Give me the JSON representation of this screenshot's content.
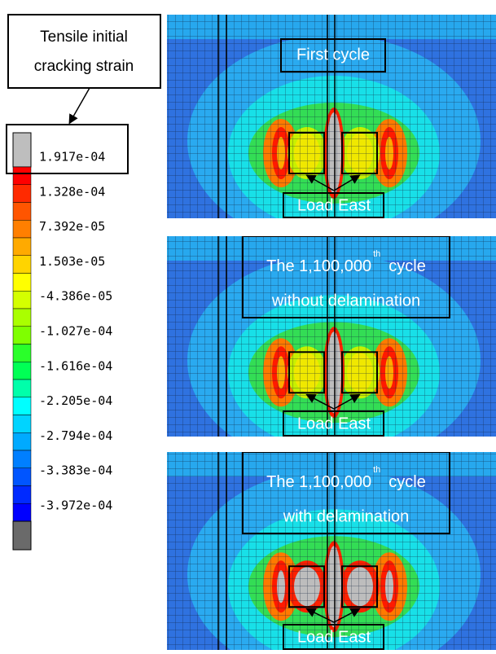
{
  "legend": {
    "title": [
      "Tensile initial",
      "cracking strain"
    ],
    "labels": [
      "1.917e-04",
      "1.328e-04",
      "7.392e-05",
      "1.503e-05",
      "-4.386e-05",
      "-1.027e-04",
      "-1.616e-04",
      "-2.205e-04",
      "-2.794e-04",
      "-3.383e-04",
      "-3.972e-04"
    ]
  },
  "panels": [
    {
      "title": {
        "before": "First cycle"
      },
      "load_label": "Load East"
    },
    {
      "title": {
        "before": "The 1,100,000",
        "sup": "th",
        "after": "cycle",
        "line2": "without delamination"
      },
      "load_label": "Load East"
    },
    {
      "title": {
        "before": "The 1,100,000",
        "sup": "th",
        "after": "cycle",
        "line2": "with delamination"
      },
      "load_label": "Load East"
    }
  ]
}
